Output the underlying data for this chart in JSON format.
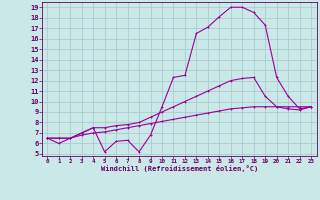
{
  "xlabel": "Windchill (Refroidissement éolien,°C)",
  "background_color": "#cbe8e8",
  "grid_color": "#aacccc",
  "line_color": "#990099",
  "xlim": [
    -0.5,
    23.5
  ],
  "ylim": [
    4.8,
    19.5
  ],
  "xticks": [
    0,
    1,
    2,
    3,
    4,
    5,
    6,
    7,
    8,
    9,
    10,
    11,
    12,
    13,
    14,
    15,
    16,
    17,
    18,
    19,
    20,
    21,
    22,
    23
  ],
  "yticks": [
    5,
    6,
    7,
    8,
    9,
    10,
    11,
    12,
    13,
    14,
    15,
    16,
    17,
    18,
    19
  ],
  "line1_x": [
    0,
    1,
    2,
    3,
    4,
    5,
    6,
    7,
    8,
    9,
    10,
    11,
    12,
    13,
    14,
    15,
    16,
    17,
    18,
    19,
    20,
    21,
    22,
    23
  ],
  "line1_y": [
    6.5,
    6.0,
    6.5,
    7.0,
    7.5,
    5.2,
    6.2,
    6.3,
    5.2,
    6.8,
    9.5,
    12.3,
    12.5,
    16.5,
    17.1,
    18.1,
    19.0,
    19.0,
    18.5,
    17.3,
    12.3,
    10.5,
    9.3,
    9.5
  ],
  "line2_x": [
    0,
    1,
    2,
    3,
    4,
    5,
    6,
    7,
    8,
    9,
    10,
    11,
    12,
    13,
    14,
    15,
    16,
    17,
    18,
    19,
    20,
    21,
    22,
    23
  ],
  "line2_y": [
    6.5,
    6.5,
    6.5,
    7.0,
    7.5,
    7.5,
    7.7,
    7.8,
    8.0,
    8.5,
    9.0,
    9.5,
    10.0,
    10.5,
    11.0,
    11.5,
    12.0,
    12.2,
    12.3,
    10.5,
    9.5,
    9.3,
    9.2,
    9.5
  ],
  "line3_x": [
    0,
    1,
    2,
    3,
    4,
    5,
    6,
    7,
    8,
    9,
    10,
    11,
    12,
    13,
    14,
    15,
    16,
    17,
    18,
    19,
    20,
    21,
    22,
    23
  ],
  "line3_y": [
    6.5,
    6.5,
    6.5,
    6.8,
    7.0,
    7.1,
    7.3,
    7.5,
    7.7,
    7.9,
    8.1,
    8.3,
    8.5,
    8.7,
    8.9,
    9.1,
    9.3,
    9.4,
    9.5,
    9.5,
    9.5,
    9.5,
    9.5,
    9.5
  ]
}
